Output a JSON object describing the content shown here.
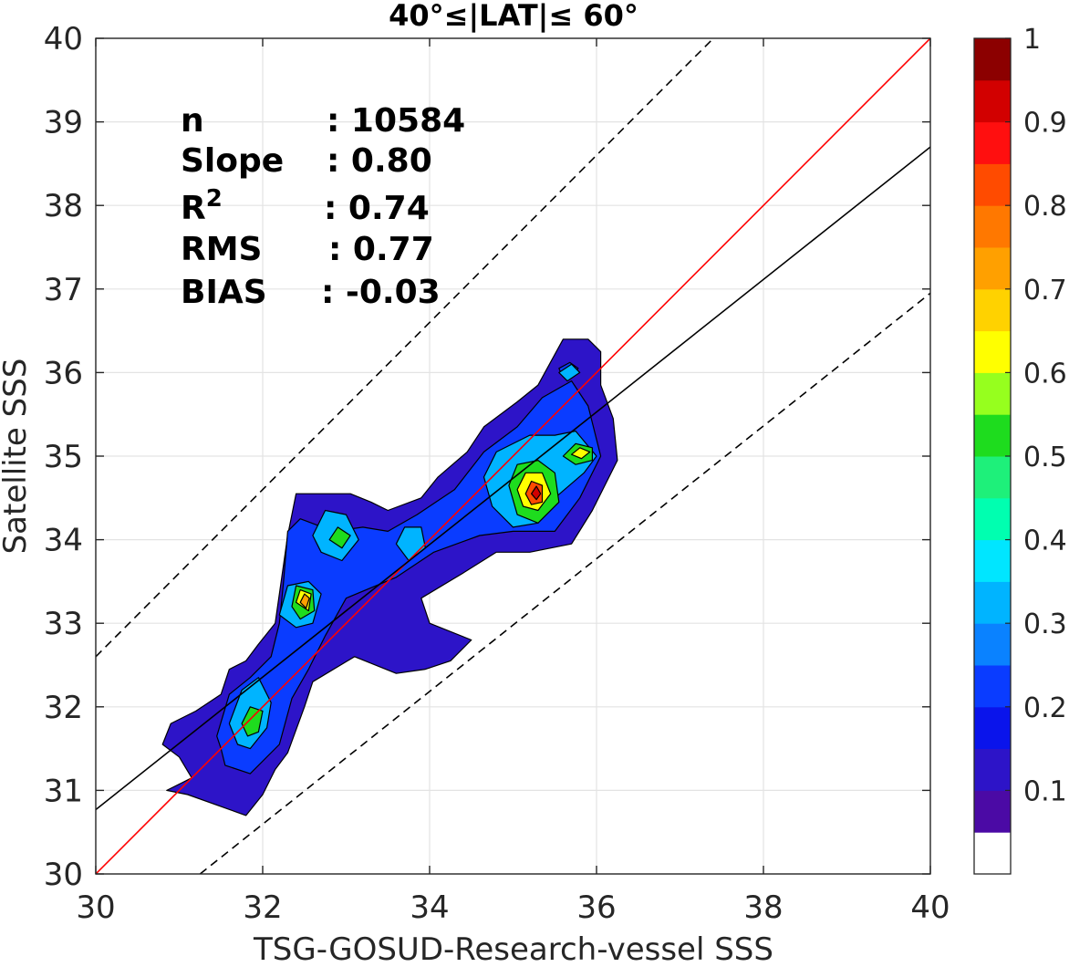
{
  "chart_data": {
    "type": "contour",
    "title": "40°≤|LAT|≤ 60°",
    "xlabel": "TSG-GOSUD-Research-vessel SSS",
    "ylabel": "Satellite SSS",
    "xlim": [
      30,
      40
    ],
    "ylim": [
      30,
      40
    ],
    "xticks": [
      "30",
      "32",
      "34",
      "36",
      "38",
      "40"
    ],
    "yticks": [
      "30",
      "31",
      "32",
      "33",
      "34",
      "35",
      "36",
      "37",
      "38",
      "39",
      "40"
    ],
    "grid": true,
    "stats": [
      {
        "label": "n",
        "value": ": 10584"
      },
      {
        "label": "Slope",
        "value": ": 0.80"
      },
      {
        "label": "R",
        "label_sup": "2",
        "value": ": 0.74"
      },
      {
        "label": "RMS",
        "value": ": 0.77"
      },
      {
        "label": "BIAS",
        "value": ": -0.03"
      }
    ],
    "lines": [
      {
        "kind": "identity",
        "color": "#ff0000",
        "points": [
          [
            30,
            30
          ],
          [
            40,
            40
          ]
        ]
      },
      {
        "kind": "regression",
        "color": "#000000",
        "points": [
          [
            30,
            30.77
          ],
          [
            40,
            38.7
          ]
        ]
      },
      {
        "kind": "upper-bound",
        "color": "#000000",
        "dashed": true,
        "points": [
          [
            30,
            32.6
          ],
          [
            40,
            42.6
          ]
        ]
      },
      {
        "kind": "lower-bound",
        "color": "#000000",
        "dashed": true,
        "points": [
          [
            31.25,
            30
          ],
          [
            40,
            36.95
          ]
        ]
      }
    ],
    "colorbar": {
      "ticks": [
        "0.1",
        "0.2",
        "0.3",
        "0.4",
        "0.5",
        "0.6",
        "0.7",
        "0.8",
        "0.9",
        "1"
      ],
      "colors": [
        "#ffffff",
        "#4b0aa5",
        "#2d14c8",
        "#0a14eb",
        "#0a3cff",
        "#0a82ff",
        "#00b4ff",
        "#00e6ff",
        "#00ffb0",
        "#1ef07a",
        "#1edc1e",
        "#96ff1e",
        "#ffff00",
        "#ffd200",
        "#ffa000",
        "#ff7800",
        "#ff4b00",
        "#ff0f0f",
        "#d20000",
        "#8c0000"
      ]
    },
    "contour_regions": [
      {
        "level": 0.05,
        "color": "#2d14c8",
        "polygon": [
          [
            30.8,
            31.55
          ],
          [
            30.9,
            31.8
          ],
          [
            31.2,
            31.95
          ],
          [
            31.5,
            32.15
          ],
          [
            31.6,
            32.45
          ],
          [
            31.8,
            32.55
          ],
          [
            31.95,
            32.75
          ],
          [
            32.15,
            33.0
          ],
          [
            32.2,
            33.35
          ],
          [
            32.3,
            34.05
          ],
          [
            32.4,
            34.55
          ],
          [
            32.7,
            34.55
          ],
          [
            33.05,
            34.55
          ],
          [
            33.3,
            34.45
          ],
          [
            33.5,
            34.35
          ],
          [
            33.9,
            34.5
          ],
          [
            34.1,
            34.75
          ],
          [
            34.45,
            35.05
          ],
          [
            34.65,
            35.35
          ],
          [
            35.05,
            35.65
          ],
          [
            35.3,
            35.85
          ],
          [
            35.6,
            36.4
          ],
          [
            35.9,
            36.4
          ],
          [
            36.05,
            36.25
          ],
          [
            36.05,
            35.85
          ],
          [
            36.2,
            35.45
          ],
          [
            36.25,
            34.95
          ],
          [
            35.95,
            34.35
          ],
          [
            35.7,
            33.95
          ],
          [
            35.2,
            33.85
          ],
          [
            34.8,
            33.85
          ],
          [
            34.4,
            33.6
          ],
          [
            33.9,
            33.3
          ],
          [
            34.0,
            33.0
          ],
          [
            34.5,
            32.8
          ],
          [
            34.25,
            32.55
          ],
          [
            33.95,
            32.45
          ],
          [
            33.6,
            32.4
          ],
          [
            33.1,
            32.6
          ],
          [
            32.6,
            32.3
          ],
          [
            32.5,
            32.0
          ],
          [
            32.3,
            31.45
          ],
          [
            32.15,
            31.25
          ],
          [
            32.0,
            30.95
          ],
          [
            31.8,
            30.7
          ],
          [
            31.1,
            30.95
          ],
          [
            30.85,
            31.0
          ],
          [
            31.15,
            31.15
          ],
          [
            31.0,
            31.4
          ]
        ]
      },
      {
        "level": 0.1,
        "color": "#0a3cff",
        "polygon": [
          [
            31.45,
            31.65
          ],
          [
            31.6,
            32.15
          ],
          [
            31.85,
            32.35
          ],
          [
            32.1,
            32.6
          ],
          [
            32.2,
            33.0
          ],
          [
            32.25,
            33.5
          ],
          [
            32.3,
            34.1
          ],
          [
            32.45,
            34.25
          ],
          [
            32.85,
            34.1
          ],
          [
            33.2,
            34.15
          ],
          [
            33.5,
            34.1
          ],
          [
            33.85,
            34.3
          ],
          [
            34.3,
            34.6
          ],
          [
            34.65,
            35.05
          ],
          [
            35.05,
            35.35
          ],
          [
            35.35,
            35.7
          ],
          [
            35.7,
            35.9
          ],
          [
            35.9,
            35.6
          ],
          [
            36.05,
            35.0
          ],
          [
            35.8,
            34.5
          ],
          [
            35.5,
            34.1
          ],
          [
            35.0,
            34.1
          ],
          [
            34.6,
            34.05
          ],
          [
            34.05,
            33.85
          ],
          [
            33.6,
            33.55
          ],
          [
            33.0,
            33.3
          ],
          [
            32.75,
            32.85
          ],
          [
            32.55,
            32.45
          ],
          [
            32.35,
            32.1
          ],
          [
            32.2,
            31.55
          ],
          [
            31.85,
            31.2
          ],
          [
            31.55,
            31.3
          ],
          [
            31.5,
            31.5
          ]
        ]
      },
      {
        "level": 0.1,
        "color": "#0a3cff",
        "polygon": [
          [
            35.55,
            36.05
          ],
          [
            35.68,
            36.12
          ],
          [
            35.78,
            36.05
          ],
          [
            35.7,
            35.97
          ],
          [
            35.58,
            35.98
          ]
        ]
      },
      {
        "level": 0.2,
        "color": "#00b4ff",
        "polygon": [
          [
            31.6,
            31.8
          ],
          [
            31.75,
            32.2
          ],
          [
            31.95,
            32.35
          ],
          [
            32.1,
            32.05
          ],
          [
            32.05,
            31.75
          ],
          [
            31.85,
            31.5
          ],
          [
            31.7,
            31.55
          ]
        ]
      },
      {
        "level": 0.2,
        "color": "#00b4ff",
        "polygon": [
          [
            32.2,
            33.1
          ],
          [
            32.3,
            33.45
          ],
          [
            32.55,
            33.5
          ],
          [
            32.7,
            33.35
          ],
          [
            32.6,
            33.0
          ],
          [
            32.4,
            32.95
          ]
        ]
      },
      {
        "level": 0.2,
        "color": "#00b4ff",
        "polygon": [
          [
            32.6,
            34.05
          ],
          [
            32.75,
            34.35
          ],
          [
            33.0,
            34.3
          ],
          [
            33.15,
            34.0
          ],
          [
            32.95,
            33.75
          ],
          [
            32.7,
            33.85
          ]
        ]
      },
      {
        "level": 0.2,
        "color": "#00b4ff",
        "polygon": [
          [
            33.6,
            33.95
          ],
          [
            33.7,
            34.15
          ],
          [
            33.9,
            34.15
          ],
          [
            33.95,
            33.9
          ],
          [
            33.75,
            33.75
          ]
        ]
      },
      {
        "level": 0.2,
        "color": "#00b4ff",
        "polygon": [
          [
            34.65,
            34.75
          ],
          [
            34.8,
            35.05
          ],
          [
            35.2,
            35.25
          ],
          [
            35.5,
            35.25
          ],
          [
            35.75,
            35.3
          ],
          [
            36.0,
            35.0
          ],
          [
            35.85,
            34.8
          ],
          [
            35.5,
            34.5
          ],
          [
            35.3,
            34.2
          ],
          [
            35.0,
            34.15
          ],
          [
            34.75,
            34.4
          ]
        ]
      },
      {
        "level": 0.2,
        "color": "#00b4ff",
        "polygon": [
          [
            35.55,
            36.0
          ],
          [
            35.7,
            36.1
          ],
          [
            35.8,
            36.0
          ],
          [
            35.65,
            35.9
          ]
        ]
      },
      {
        "level": 0.4,
        "color": "#1edc1e",
        "polygon": [
          [
            31.75,
            31.8
          ],
          [
            31.85,
            32.0
          ],
          [
            32.0,
            31.95
          ],
          [
            31.95,
            31.7
          ],
          [
            31.82,
            31.65
          ]
        ]
      },
      {
        "level": 0.4,
        "color": "#1edc1e",
        "polygon": [
          [
            32.35,
            33.2
          ],
          [
            32.4,
            33.45
          ],
          [
            32.6,
            33.4
          ],
          [
            32.62,
            33.15
          ],
          [
            32.45,
            33.05
          ]
        ]
      },
      {
        "level": 0.4,
        "color": "#1edc1e",
        "polygon": [
          [
            32.8,
            34.0
          ],
          [
            32.9,
            34.15
          ],
          [
            33.05,
            34.05
          ],
          [
            32.95,
            33.9
          ]
        ]
      },
      {
        "level": 0.4,
        "color": "#1edc1e",
        "polygon": [
          [
            34.95,
            34.65
          ],
          [
            35.05,
            34.9
          ],
          [
            35.3,
            34.95
          ],
          [
            35.5,
            34.8
          ],
          [
            35.55,
            34.45
          ],
          [
            35.3,
            34.2
          ],
          [
            35.05,
            34.3
          ]
        ]
      },
      {
        "level": 0.5,
        "color": "#1edc1e",
        "polygon": [
          [
            35.6,
            35.0
          ],
          [
            35.75,
            35.15
          ],
          [
            35.95,
            35.1
          ],
          [
            35.95,
            34.95
          ],
          [
            35.75,
            34.9
          ]
        ]
      },
      {
        "level": 0.6,
        "color": "#ffff00",
        "polygon": [
          [
            35.05,
            34.6
          ],
          [
            35.15,
            34.8
          ],
          [
            35.35,
            34.8
          ],
          [
            35.45,
            34.55
          ],
          [
            35.3,
            34.35
          ],
          [
            35.12,
            34.4
          ]
        ]
      },
      {
        "level": 0.6,
        "color": "#ffff00",
        "polygon": [
          [
            35.7,
            35.02
          ],
          [
            35.8,
            35.1
          ],
          [
            35.92,
            35.05
          ],
          [
            35.82,
            34.97
          ]
        ]
      },
      {
        "level": 0.6,
        "color": "#ffff00",
        "polygon": [
          [
            32.4,
            33.25
          ],
          [
            32.45,
            33.4
          ],
          [
            32.58,
            33.35
          ],
          [
            32.55,
            33.15
          ]
        ]
      },
      {
        "level": 0.7,
        "color": "#ffa000",
        "polygon": [
          [
            32.45,
            33.25
          ],
          [
            32.5,
            33.35
          ],
          [
            32.56,
            33.3
          ],
          [
            32.52,
            33.18
          ]
        ]
      },
      {
        "level": 0.8,
        "color": "#ff4b00",
        "polygon": [
          [
            35.15,
            34.55
          ],
          [
            35.22,
            34.7
          ],
          [
            35.35,
            34.65
          ],
          [
            35.35,
            34.45
          ],
          [
            35.22,
            34.42
          ]
        ]
      },
      {
        "level": 0.9,
        "color": "#d20000",
        "polygon": [
          [
            35.22,
            34.55
          ],
          [
            35.28,
            34.64
          ],
          [
            35.33,
            34.55
          ],
          [
            35.28,
            34.48
          ]
        ]
      }
    ]
  }
}
